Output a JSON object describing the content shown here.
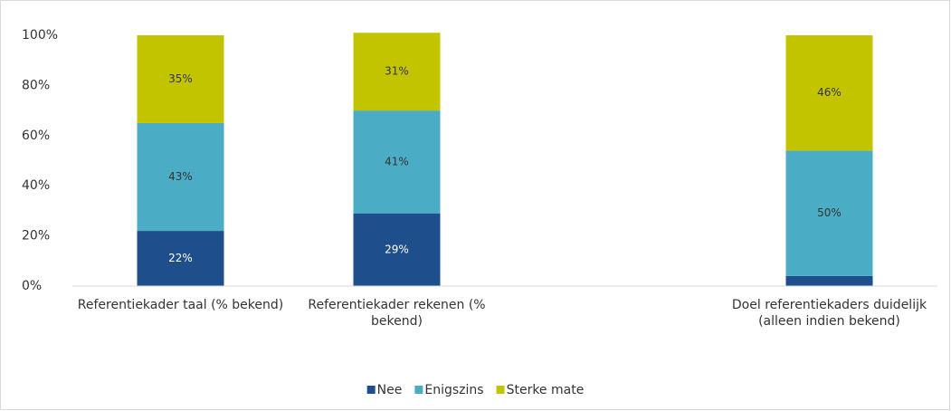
{
  "chart_data": {
    "type": "bar",
    "stacked": true,
    "categories": [
      "Referentiekader taal (% bekend)",
      "Referentiekader rekenen (% bekend)",
      null,
      "Doel referentiekaders duidelijk (alleen indien bekend)"
    ],
    "series": [
      {
        "name": "Nee",
        "color": "#1f4e8c",
        "values": [
          22,
          29,
          null,
          4
        ],
        "value_labels": [
          "22%",
          "29%",
          null,
          null
        ]
      },
      {
        "name": "Enigszins",
        "color": "#4bacc6",
        "values": [
          43,
          41,
          null,
          50
        ],
        "value_labels": [
          "43%",
          "41%",
          null,
          "50%"
        ]
      },
      {
        "name": "Sterke mate",
        "color": "#c3c400",
        "values": [
          35,
          31,
          null,
          46
        ],
        "value_labels": [
          "35%",
          "31%",
          null,
          "46%"
        ]
      }
    ],
    "ylim": [
      0,
      100
    ],
    "yticks": [
      {
        "value": 0,
        "label": "0%"
      },
      {
        "value": 20,
        "label": "20%"
      },
      {
        "value": 40,
        "label": "40%"
      },
      {
        "value": 60,
        "label": "60%"
      },
      {
        "value": 80,
        "label": "80%"
      },
      {
        "value": 100,
        "label": "100%"
      }
    ],
    "legend": "bottom"
  }
}
